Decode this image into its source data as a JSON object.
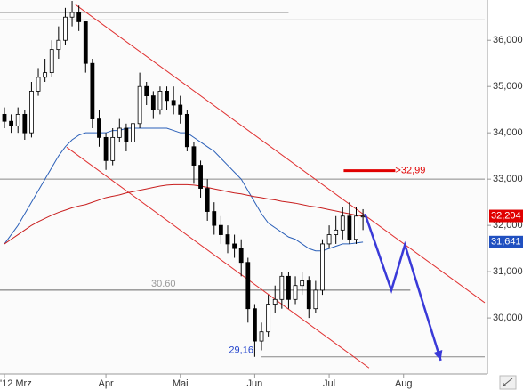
{
  "chart_data": {
    "type": "candlestick",
    "xlim": [
      0,
      71
    ],
    "ylim": [
      28.79,
      36.87
    ],
    "xticks": [
      {
        "value": 0,
        "label": "'12 Mrz"
      },
      {
        "value": 15,
        "label": "Apr"
      },
      {
        "value": 26,
        "label": "Mai"
      },
      {
        "value": 37,
        "label": "Jun"
      },
      {
        "value": 48,
        "label": "Jul"
      },
      {
        "value": 59,
        "label": "Aug"
      }
    ],
    "yticks": [
      {
        "value": 30,
        "label": "30,000"
      },
      {
        "value": 31,
        "label": "31,000"
      },
      {
        "value": 32,
        "label": "32,000"
      },
      {
        "value": 33,
        "label": "33,000"
      },
      {
        "value": 34,
        "label": "34,000"
      },
      {
        "value": 35,
        "label": "35,000"
      },
      {
        "value": 36,
        "label": "36,000"
      }
    ],
    "open": [
      34.4,
      34.25,
      34.15,
      34.4,
      34.0,
      34.9,
      35.2,
      35.3,
      35.8,
      36.0,
      36.5,
      36.6,
      36.4,
      35.5,
      34.3,
      33.9,
      33.4,
      33.9,
      34.1,
      33.8,
      34.2,
      35.0,
      34.8,
      34.5,
      34.9,
      34.7,
      34.6,
      34.4,
      33.7,
      33.3,
      32.8,
      32.3,
      32.0,
      31.8,
      31.6,
      31.5,
      31.2,
      30.2,
      29.5,
      29.7,
      30.3,
      30.4,
      30.9,
      30.4,
      30.7,
      30.8,
      30.2,
      30.6,
      31.6,
      31.8,
      31.9,
      32.2,
      31.7,
      32.2
    ],
    "high": [
      34.55,
      34.4,
      34.55,
      34.5,
      35.1,
      35.4,
      35.6,
      36.0,
      36.3,
      36.7,
      36.85,
      36.75,
      36.4,
      35.6,
      34.5,
      34.0,
      34.1,
      34.3,
      34.2,
      34.4,
      35.3,
      35.1,
      34.9,
      35.0,
      35.0,
      35.0,
      34.8,
      34.5,
      33.8,
      33.4,
      33.0,
      32.5,
      32.2,
      32.0,
      31.8,
      31.7,
      31.3,
      30.3,
      29.9,
      30.5,
      30.7,
      31.0,
      31.0,
      30.9,
      31.0,
      30.9,
      30.8,
      31.7,
      32.0,
      32.2,
      32.4,
      32.5,
      32.4,
      32.35
    ],
    "low": [
      34.1,
      34.0,
      34.0,
      33.85,
      33.9,
      34.8,
      35.1,
      35.2,
      35.6,
      35.9,
      36.3,
      36.2,
      35.3,
      34.1,
      33.7,
      33.2,
      33.3,
      33.8,
      33.6,
      33.7,
      34.1,
      34.6,
      34.3,
      34.4,
      34.5,
      34.4,
      34.2,
      33.6,
      32.9,
      32.6,
      32.1,
      31.8,
      31.6,
      31.4,
      31.3,
      30.9,
      29.9,
      29.16,
      29.3,
      29.6,
      30.1,
      30.2,
      30.2,
      30.3,
      30.5,
      30.0,
      30.1,
      30.5,
      31.5,
      31.6,
      31.7,
      31.6,
      31.6,
      31.9
    ],
    "close": [
      34.25,
      34.15,
      34.4,
      34.0,
      34.9,
      35.2,
      35.3,
      35.8,
      36.0,
      36.5,
      36.6,
      36.4,
      35.5,
      34.3,
      33.9,
      33.4,
      33.9,
      34.1,
      33.8,
      34.2,
      35.0,
      34.8,
      34.5,
      34.9,
      34.7,
      34.6,
      34.4,
      33.7,
      33.3,
      32.8,
      32.3,
      32.0,
      31.8,
      31.6,
      31.5,
      31.2,
      30.2,
      29.5,
      29.7,
      30.3,
      30.4,
      30.9,
      30.4,
      30.7,
      30.8,
      30.2,
      30.6,
      31.6,
      31.8,
      31.9,
      32.2,
      31.7,
      32.2,
      32.2
    ],
    "averages": [
      {
        "color": "#2a5fb8",
        "values": [
          31.6,
          31.8,
          32.0,
          32.25,
          32.5,
          32.75,
          33.0,
          33.25,
          33.5,
          33.7,
          33.85,
          33.95,
          34.0,
          34.0,
          34.0,
          34.0,
          34.05,
          34.05,
          34.1,
          34.1,
          34.1,
          34.1,
          34.1,
          34.1,
          34.1,
          34.05,
          34.0,
          34.0,
          33.9,
          33.8,
          33.7,
          33.6,
          33.45,
          33.3,
          33.15,
          33.0,
          32.75,
          32.5,
          32.25,
          32.05,
          31.95,
          31.85,
          31.75,
          31.7,
          31.6,
          31.5,
          31.45,
          31.45,
          31.5,
          31.55,
          31.6,
          31.6,
          31.62,
          31.64
        ]
      },
      {
        "color": "#c81e1e",
        "values": [
          31.6,
          31.7,
          31.8,
          31.9,
          32.0,
          32.08,
          32.15,
          32.22,
          32.28,
          32.33,
          32.38,
          32.42,
          32.45,
          32.5,
          32.55,
          32.6,
          32.63,
          32.66,
          32.7,
          32.73,
          32.76,
          32.79,
          32.82,
          32.85,
          32.87,
          32.88,
          32.88,
          32.88,
          32.87,
          32.85,
          32.82,
          32.79,
          32.76,
          32.73,
          32.7,
          32.68,
          32.65,
          32.62,
          32.6,
          32.57,
          32.55,
          32.52,
          32.5,
          32.48,
          32.45,
          32.42,
          32.4,
          32.37,
          32.34,
          32.31,
          32.28,
          32.25,
          32.22,
          32.2
        ]
      }
    ],
    "hlines": [
      {
        "value": 36.6,
        "from": 0,
        "to": 42,
        "color": "#888888"
      },
      {
        "value": 36.44,
        "from": 0,
        "to": 71,
        "color": "#888888"
      },
      {
        "value": 33.0,
        "from": 0,
        "to": 71,
        "color": "#888888"
      },
      {
        "value": 30.6,
        "from": 0,
        "to": 60,
        "color": "#666666"
      },
      {
        "value": 29.16,
        "from": 38,
        "to": 71,
        "color": "#888888"
      }
    ],
    "trendlines": [
      {
        "color": "#e03030",
        "x": [
          10.5,
          71
        ],
        "values": [
          36.77,
          30.33
        ]
      },
      {
        "color": "#e03030",
        "x": [
          9.2,
          53.9
        ],
        "values": [
          33.69,
          28.92
        ]
      }
    ],
    "forecast": {
      "color": "#3a3ad8",
      "x": [
        53.3,
        57.2,
        59.2,
        64.5
      ],
      "values": [
        32.25,
        30.6,
        31.58,
        29.08
      ]
    },
    "annotations": [
      {
        "label": "30.60",
        "value": 30.6,
        "x": 23.5,
        "color": "#999999"
      },
      {
        "label": "29,16",
        "value": 29.16,
        "x": 35,
        "color": "#2244cc"
      },
      {
        "label": ">32,99",
        "value": 32.99,
        "x": 58.3,
        "color": "#e00000"
      }
    ],
    "last_labels": [
      {
        "label": "32,204",
        "value": 32.204,
        "color": "#e00000"
      },
      {
        "label": "31,641",
        "value": 31.641,
        "color": "#2050c0"
      }
    ]
  }
}
